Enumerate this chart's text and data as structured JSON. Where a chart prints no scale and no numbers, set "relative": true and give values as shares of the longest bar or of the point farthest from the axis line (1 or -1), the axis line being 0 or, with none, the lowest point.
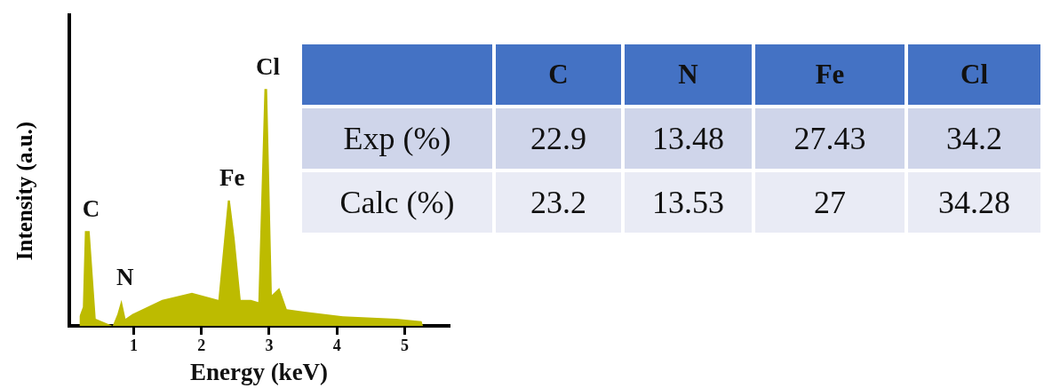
{
  "chart_data": [
    {
      "type": "area",
      "relative": true,
      "xlabel": "Energy (keV)",
      "ylabel": "Intensity (a.u.)",
      "xlim": [
        0.05,
        5.65
      ],
      "xticks": [
        1,
        2,
        3,
        4,
        5
      ],
      "grid": false,
      "legend": false,
      "x": [
        0.2,
        0.25,
        0.28,
        0.35,
        0.44,
        0.69,
        0.76,
        0.82,
        0.88,
        0.98,
        1.2,
        1.42,
        1.86,
        2.25,
        2.39,
        2.42,
        2.49,
        2.58,
        2.73,
        2.84,
        2.93,
        2.97,
        3.04,
        3.15,
        3.26,
        3.52,
        4.09,
        4.88,
        5.25,
        5.27
      ],
      "series": [
        {
          "color": "#bdbb00",
          "values": [
            0.04,
            0.08,
            0.4,
            0.4,
            0.03,
            0,
            0.05,
            0.11,
            0.03,
            0.05,
            0.08,
            0.11,
            0.14,
            0.11,
            0.53,
            0.53,
            0.37,
            0.11,
            0.11,
            0.1,
            1.0,
            1.0,
            0.13,
            0.16,
            0.07,
            0.06,
            0.04,
            0.03,
            0.02,
            0
          ]
        }
      ],
      "annotations": [
        {
          "text": "C",
          "x": 0.32,
          "y": 0.4
        },
        {
          "text": "N",
          "x": 0.82,
          "y": 0.11
        },
        {
          "text": "Fe",
          "x": 2.4,
          "y": 0.53
        },
        {
          "text": "Cl",
          "x": 2.93,
          "y": 1.0
        }
      ]
    },
    {
      "type": "other",
      "categories": [
        "C",
        "N",
        "Fe",
        "Cl"
      ],
      "data_labels": true,
      "color": "#4472c4",
      "series": [
        {
          "name": "Exp (%)",
          "color": "#cfd5ea",
          "values": [
            22.9,
            13.48,
            27.43,
            34.2
          ]
        },
        {
          "name": "Calc (%)",
          "color": "#e9ebf5",
          "values": [
            23.2,
            13.53,
            27,
            34.28
          ]
        }
      ]
    }
  ]
}
